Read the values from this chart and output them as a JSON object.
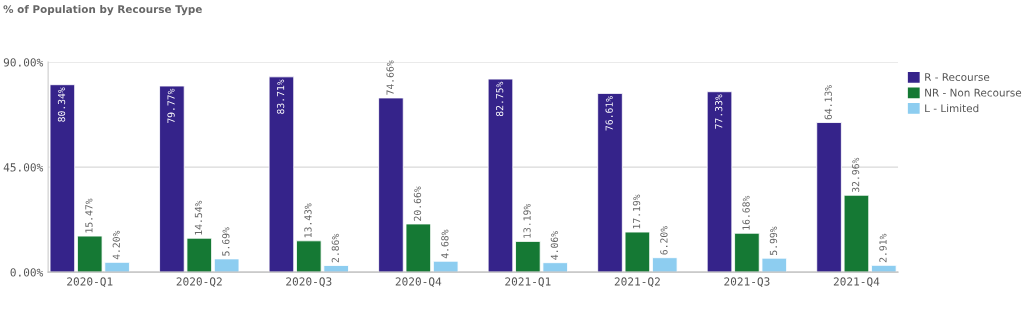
{
  "chart_data": {
    "type": "bar",
    "title": "% of Population by Recourse Type",
    "categories": [
      "2020-Q1",
      "2020-Q2",
      "2020-Q3",
      "2020-Q4",
      "2021-Q1",
      "2021-Q2",
      "2021-Q3",
      "2021-Q4"
    ],
    "series": [
      {
        "name": "R - Recourse",
        "color": "#35238a",
        "values": [
          80.34,
          79.77,
          83.71,
          74.66,
          82.75,
          76.61,
          77.33,
          64.13
        ],
        "value_labels": [
          "80.34%",
          "79.77%",
          "83.71%",
          "74.66%",
          "82.75%",
          "76.61%",
          "77.33%",
          "64.13%"
        ]
      },
      {
        "name": "NR - Non Recourse",
        "color": "#157934",
        "values": [
          15.47,
          14.54,
          13.43,
          20.66,
          13.19,
          17.19,
          16.68,
          32.96
        ],
        "value_labels": [
          "15.47%",
          "14.54%",
          "13.43%",
          "20.66%",
          "13.19%",
          "17.19%",
          "16.68%",
          "32.96%"
        ]
      },
      {
        "name": "L - Limited",
        "color": "#8dcdf0",
        "values": [
          4.2,
          5.69,
          2.86,
          4.68,
          4.06,
          6.2,
          5.99,
          2.91
        ],
        "value_labels": [
          "4.20%",
          "5.69%",
          "2.86%",
          "4.68%",
          "4.06%",
          "6.20%",
          "5.99%",
          "2.91%"
        ]
      }
    ],
    "ylim": [
      0,
      90
    ],
    "yticks": [
      {
        "value": 0,
        "label": "0.00%"
      },
      {
        "value": 45,
        "label": "45.00%"
      },
      {
        "value": 90,
        "label": "90.00%"
      }
    ],
    "grid": "y",
    "legend": "top right"
  }
}
